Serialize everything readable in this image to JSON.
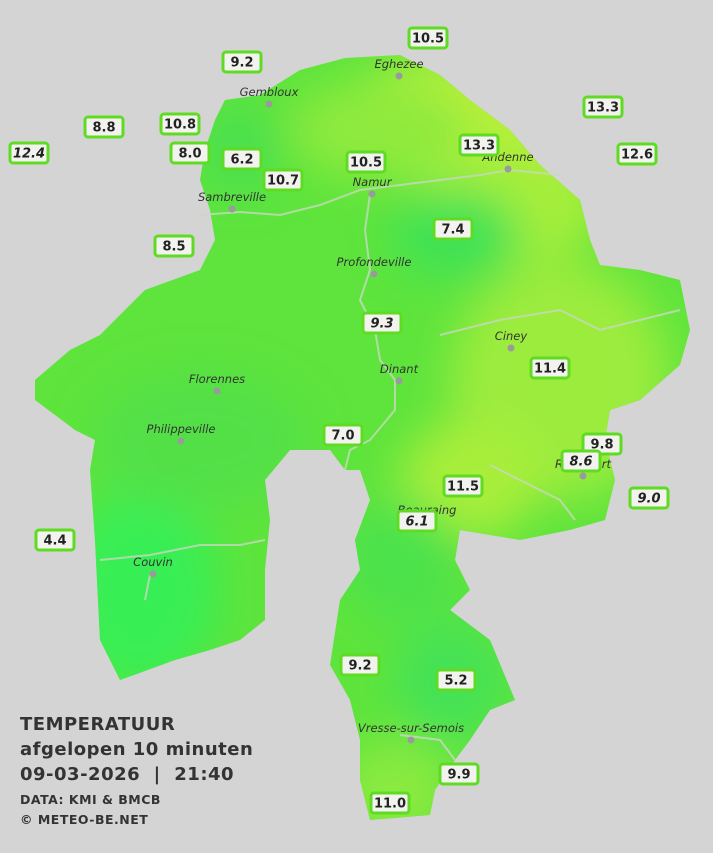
{
  "places": [
    "Eghezee",
    "Gembloux",
    "Andenne",
    "Namur",
    "Sambreville",
    "Profondeville",
    "Ciney",
    "Dinant",
    "Florennes",
    "Philippeville",
    "Rochefort",
    "Beauraing",
    "Couvin",
    "Vresse-sur-Semois"
  ],
  "stations": [
    "10.5",
    "9.2",
    "13.3",
    "8.8",
    "10.8",
    "12.4",
    "8.0",
    "6.2",
    "13.3",
    "12.6",
    "10.5",
    "10.7",
    "7.4",
    "8.5",
    "9.3",
    "11.4",
    "7.0",
    "9.8",
    "8.6",
    "11.5",
    "9.0",
    "6.1",
    "4.4",
    "9.2",
    "5.2",
    "9.9",
    "11.0"
  ],
  "caption": {
    "title": "TEMPERATUUR",
    "subtitle": "afgelopen 10 minuten",
    "datetime": "09-03-2026  |  21:40",
    "source": "DATA: KMI & BMCB",
    "copyright": "© METEO-BE.NET"
  }
}
